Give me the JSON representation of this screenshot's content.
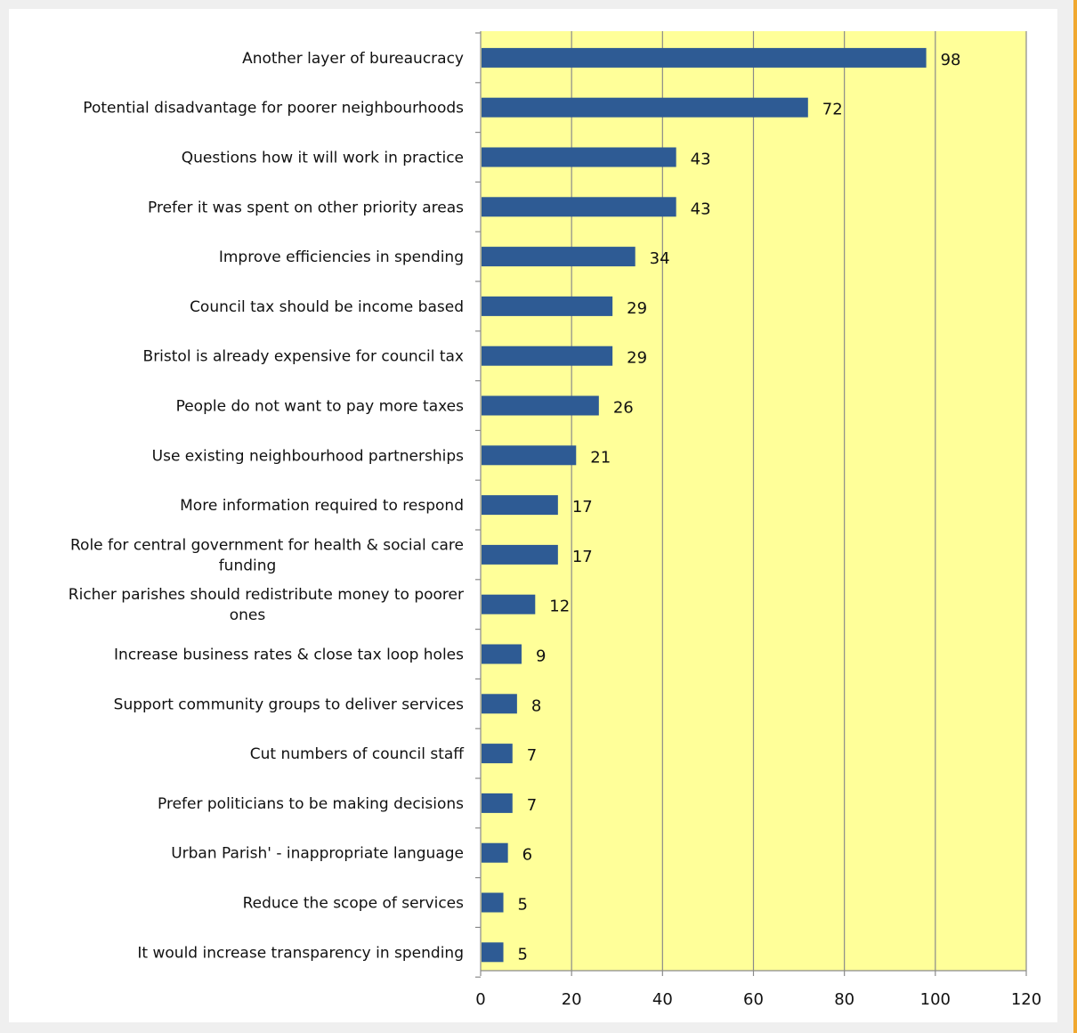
{
  "chart_data": {
    "type": "bar",
    "orientation": "horizontal",
    "title": "",
    "xlabel": "",
    "ylabel": "",
    "xlim": [
      0,
      120
    ],
    "xticks": [
      0,
      20,
      40,
      60,
      80,
      100,
      120
    ],
    "grid": true,
    "legend": "none",
    "colors": {
      "bar": "#2e5b94",
      "plot_bg": "#ffff99",
      "grid": "#8a8a8a",
      "axis": "#8a8a8a"
    },
    "categories": [
      [
        "Another layer of bureaucracy"
      ],
      [
        "Potential disadvantage for poorer neighbourhoods"
      ],
      [
        "Questions how it will work in practice"
      ],
      [
        "Prefer it was spent on other priority areas"
      ],
      [
        "Improve efficiencies in spending"
      ],
      [
        "Council tax should be income based"
      ],
      [
        "Bristol is already expensive for council tax"
      ],
      [
        "People do not want to pay more taxes"
      ],
      [
        "Use existing neighbourhood partnerships"
      ],
      [
        "More information required to respond"
      ],
      [
        "Role for central government for health & social care",
        "funding"
      ],
      [
        "Richer parishes should redistribute money to poorer",
        "ones"
      ],
      [
        "Increase business rates & close tax loop holes"
      ],
      [
        "Support community groups to deliver services"
      ],
      [
        "Cut numbers of council staff"
      ],
      [
        "Prefer politicians to be making decisions"
      ],
      [
        "Urban Parish' - inappropriate language"
      ],
      [
        "Reduce the scope of services"
      ],
      [
        "It would increase transparency in spending"
      ]
    ],
    "values": [
      98,
      72,
      43,
      43,
      34,
      29,
      29,
      26,
      21,
      17,
      17,
      12,
      9,
      8,
      7,
      7,
      6,
      5,
      5
    ]
  }
}
